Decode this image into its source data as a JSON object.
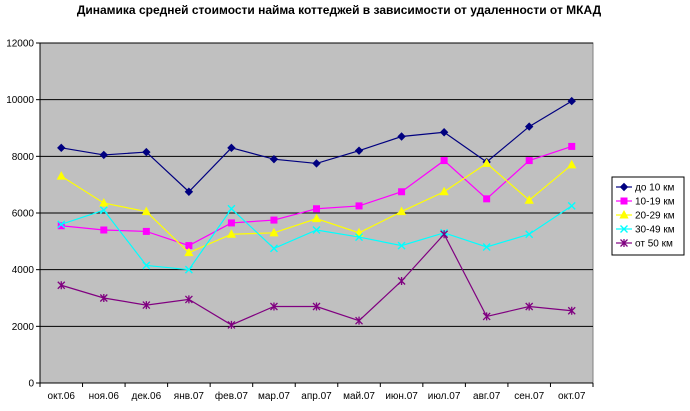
{
  "chart_data": {
    "type": "line",
    "title": "Динамика средней стоимости найма коттеджей в зависимости от удаленности от МКАД",
    "xlabel": "",
    "ylabel": "",
    "ylim": [
      0,
      12000
    ],
    "yticks": [
      0,
      2000,
      4000,
      6000,
      8000,
      10000,
      12000
    ],
    "grid": "horizontal",
    "plot_background": "#c0c0c0",
    "legend_position": "right",
    "categories": [
      "окт.06",
      "ноя.06",
      "дек.06",
      "янв.07",
      "фев.07",
      "мар.07",
      "апр.07",
      "май.07",
      "июн.07",
      "июл.07",
      "авг.07",
      "сен.07",
      "окт.07"
    ],
    "series": [
      {
        "name": "до 10 км",
        "color": "#000080",
        "marker": "diamond",
        "values": [
          8300,
          8050,
          8150,
          6750,
          8300,
          7900,
          7750,
          8200,
          8700,
          8850,
          7800,
          9050,
          9950
        ]
      },
      {
        "name": "10-19 км",
        "color": "#ff00ff",
        "marker": "square",
        "values": [
          5550,
          5400,
          5350,
          4850,
          5650,
          5750,
          6150,
          6250,
          6750,
          7850,
          6500,
          7850,
          8350
        ]
      },
      {
        "name": "20-29 км",
        "color": "#ffff00",
        "marker": "triangle",
        "values": [
          7300,
          6350,
          6050,
          4600,
          5250,
          5300,
          5800,
          5300,
          6050,
          6750,
          7750,
          6450,
          7700
        ]
      },
      {
        "name": "30-49 км",
        "color": "#00ffff",
        "marker": "x",
        "values": [
          5600,
          6100,
          4150,
          4000,
          6150,
          4750,
          5400,
          5150,
          4850,
          5300,
          4800,
          5250,
          6250
        ]
      },
      {
        "name": "от 50 км",
        "color": "#800080",
        "marker": "star",
        "values": [
          3450,
          3000,
          2750,
          2950,
          2050,
          2700,
          2700,
          2200,
          3600,
          5250,
          2350,
          2700,
          2550
        ]
      }
    ]
  }
}
